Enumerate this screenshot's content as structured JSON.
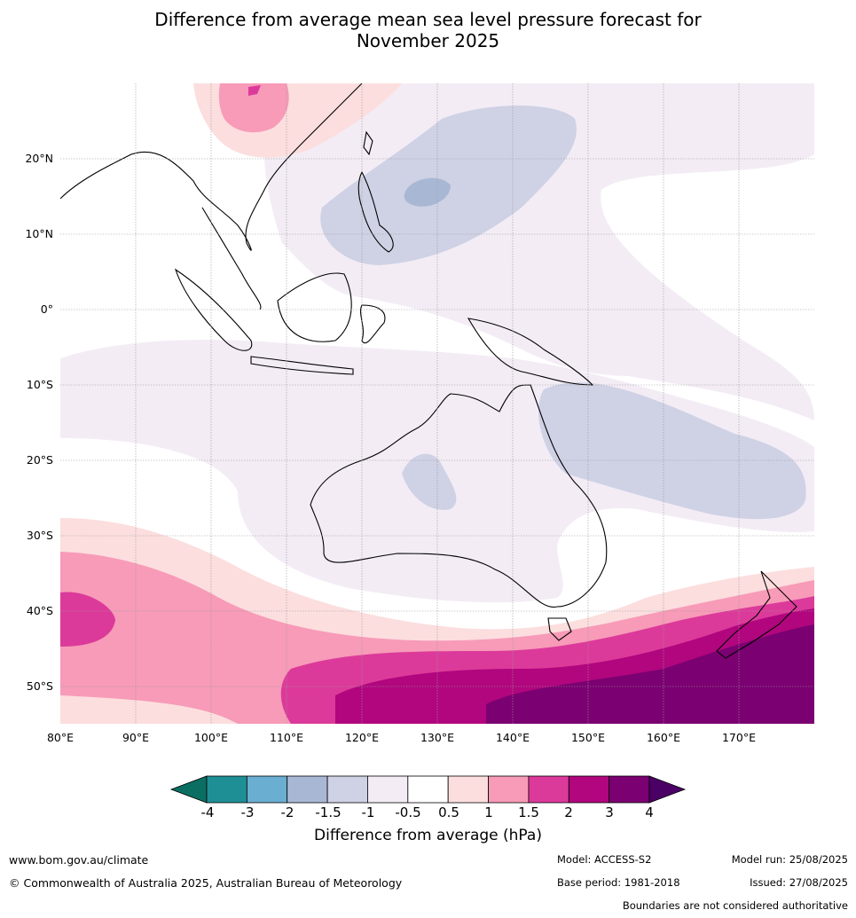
{
  "title_line1": "Difference from average mean sea level pressure forecast for",
  "title_line2": "November 2025",
  "lat_labels": [
    "20°N",
    "10°N",
    "0°",
    "10°S",
    "20°S",
    "30°S",
    "40°S",
    "50°S"
  ],
  "lon_labels": [
    "80°E",
    "90°E",
    "100°E",
    "110°E",
    "120°E",
    "130°E",
    "140°E",
    "150°E",
    "160°E",
    "170°E"
  ],
  "legend": {
    "ticks": [
      "-4",
      "-3",
      "-2",
      "-1.5",
      "-1",
      "-0.5",
      "0.5",
      "1",
      "1.5",
      "2",
      "3",
      "4"
    ],
    "colors": [
      "#1f8f96",
      "#6aaed1",
      "#a8b8d4",
      "#cfd1e5",
      "#f3ecf5",
      "#ffffff",
      "#fcdede",
      "#f79bb8",
      "#dc3a9a",
      "#b1067e",
      "#7b0071"
    ],
    "low_color": "#0b6e63",
    "high_color": "#4a0065",
    "title": "Difference from average (hPa)"
  },
  "footer": {
    "website": "www.bom.gov.au/climate",
    "copyright": "© Commonwealth of Australia 2025, Australian Bureau of Meteorology",
    "model": "Model: ACCESS-S2",
    "base_period": "Base period: 1981-2018",
    "model_run": "Model run: 25/08/2025",
    "issued": "Issued: 27/08/2025",
    "disclaimer": "Boundaries are not considered authoritative"
  }
}
